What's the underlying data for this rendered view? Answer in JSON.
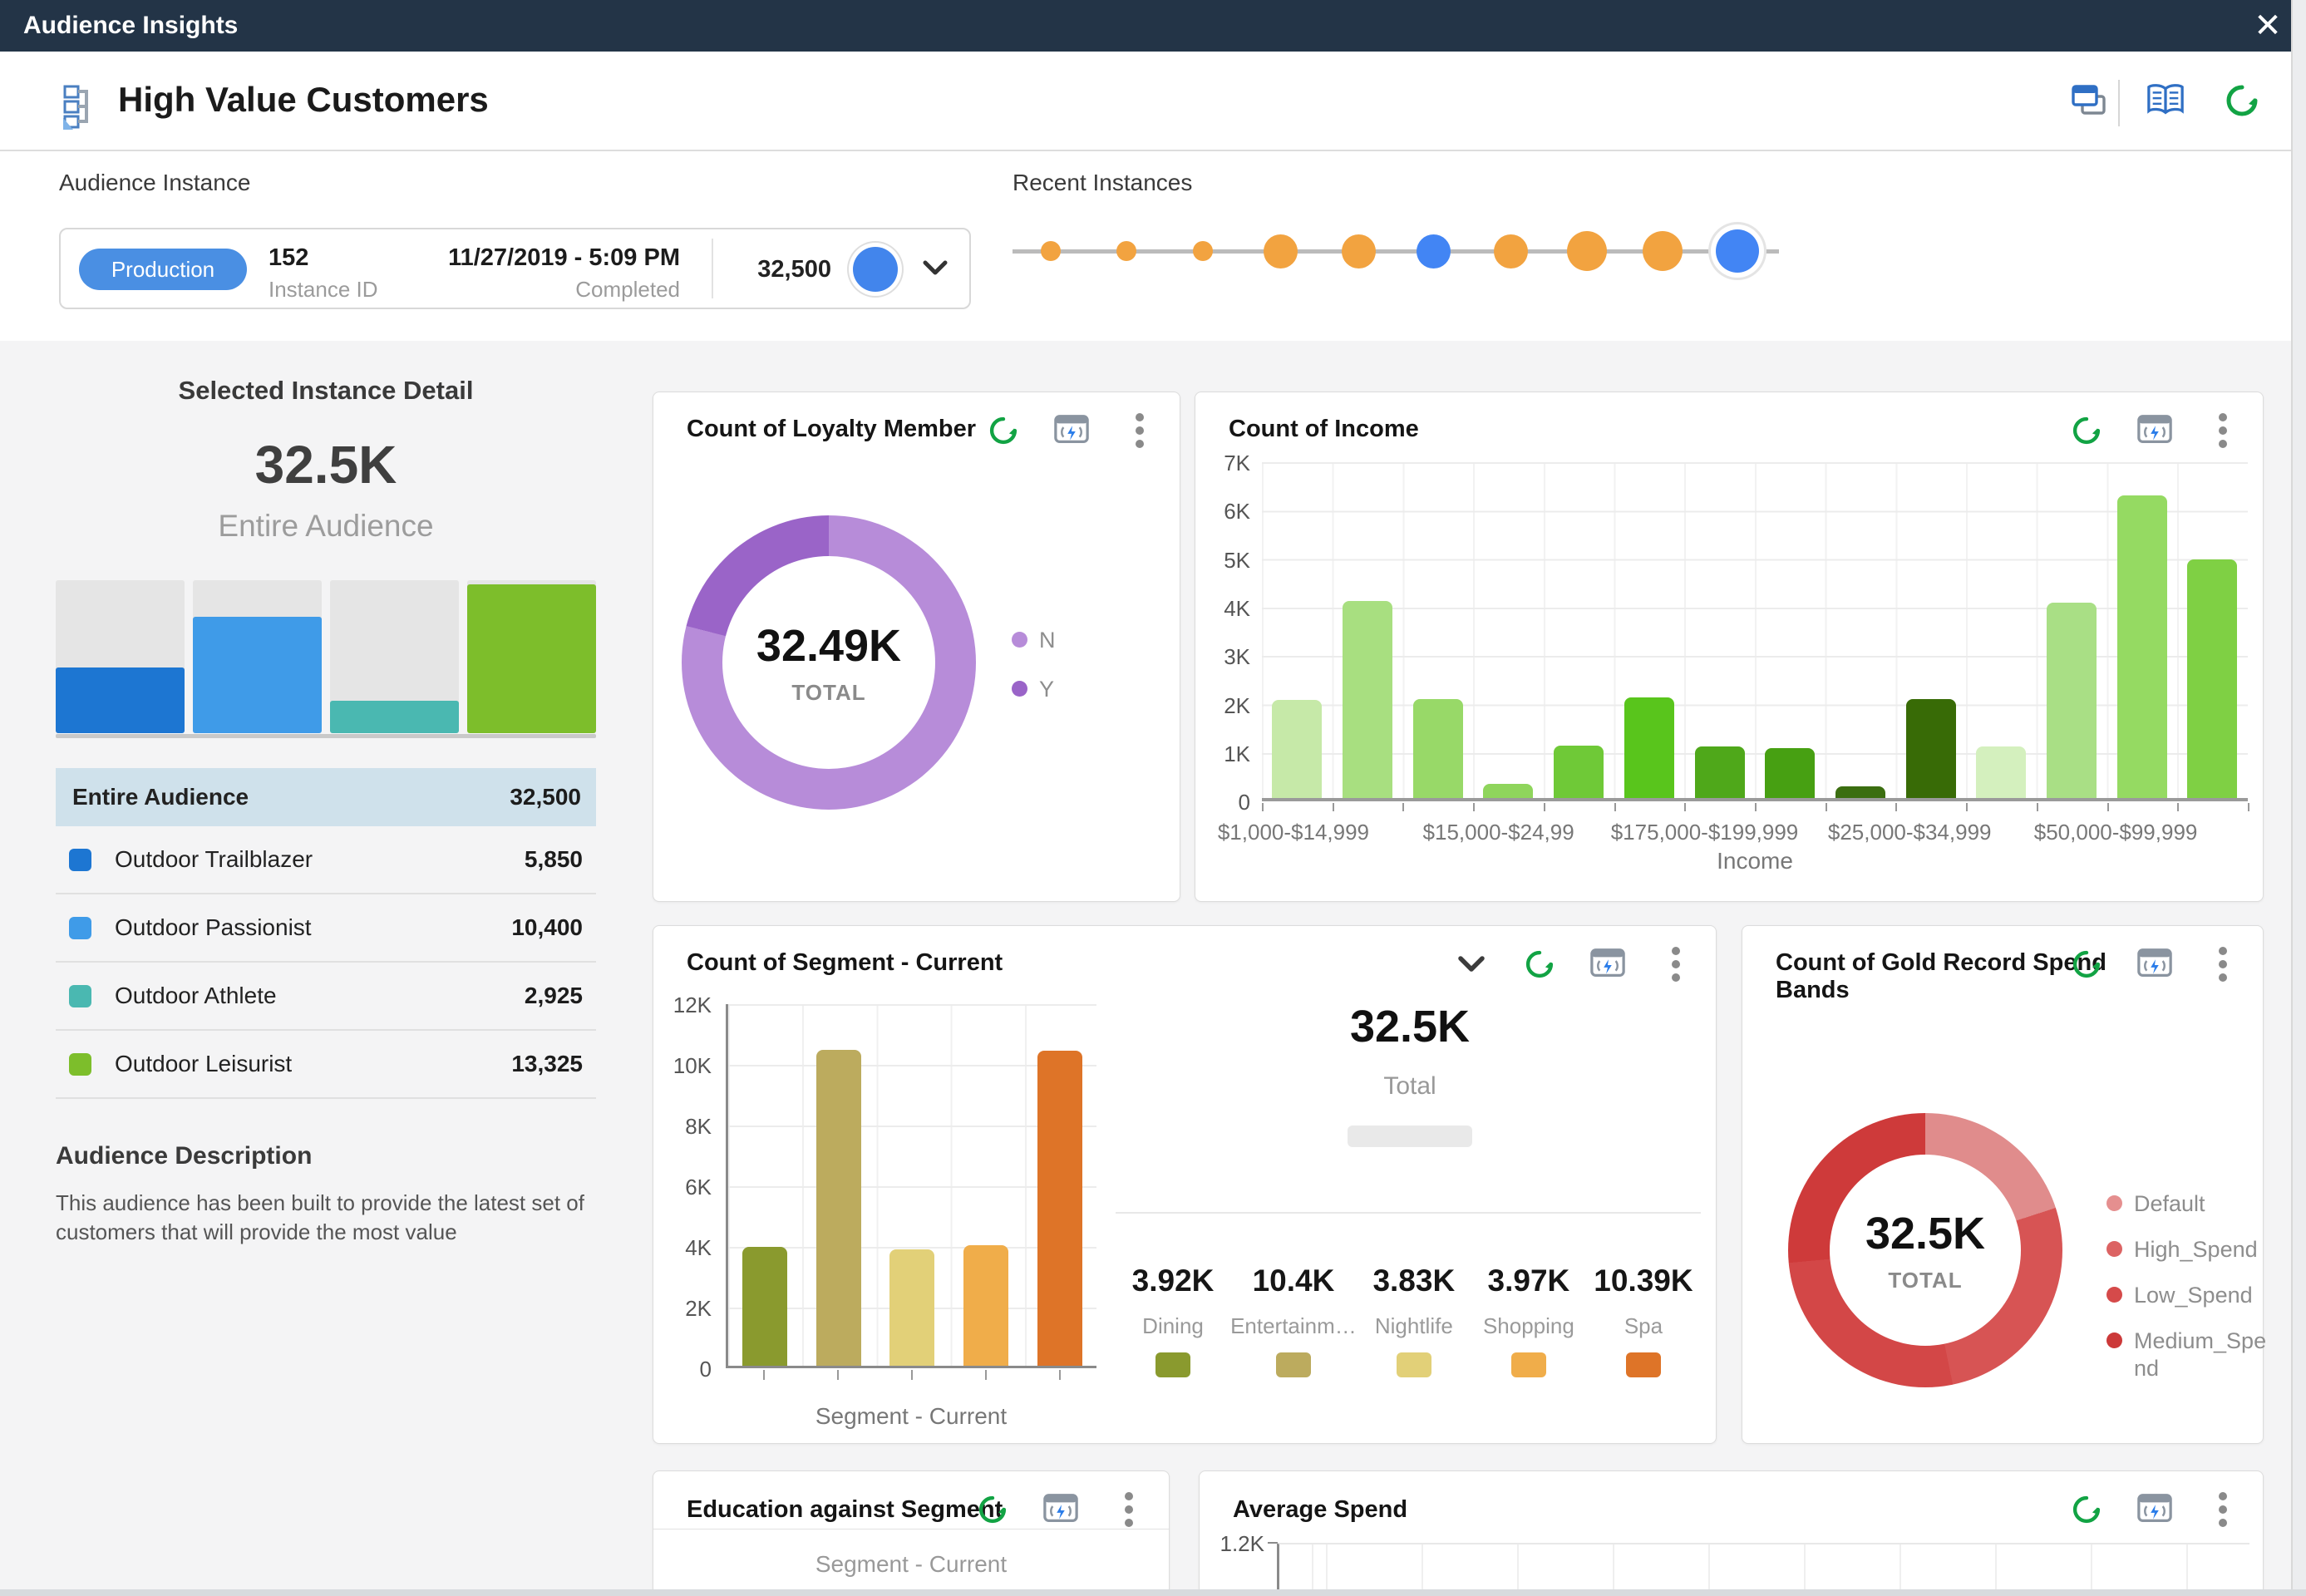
{
  "titlebar": {
    "title": "Audience Insights"
  },
  "header": {
    "title": "High Value Customers"
  },
  "instance_panel": {
    "audience_instance_label": "Audience Instance",
    "recent_instances_label": "Recent Instances",
    "card": {
      "badge": "Production",
      "instance_id_value": "152",
      "instance_id_label": "Instance ID",
      "completed_value": "11/27/2019 - 5:09 PM",
      "completed_label": "Completed",
      "count": "32,500"
    },
    "timeline_dots": [
      {
        "x": 1264,
        "size": 24,
        "color": "#F2A340",
        "selected": false
      },
      {
        "x": 1355,
        "size": 24,
        "color": "#F2A340",
        "selected": false
      },
      {
        "x": 1447,
        "size": 24,
        "color": "#F2A340",
        "selected": false
      },
      {
        "x": 1540,
        "size": 41,
        "color": "#F2A340",
        "selected": false
      },
      {
        "x": 1634,
        "size": 41,
        "color": "#F2A340",
        "selected": false
      },
      {
        "x": 1724,
        "size": 41,
        "color": "#4285F4",
        "selected": false
      },
      {
        "x": 1817,
        "size": 41,
        "color": "#F2A340",
        "selected": false
      },
      {
        "x": 1909,
        "size": 48,
        "color": "#F2A340",
        "selected": false
      },
      {
        "x": 2000,
        "size": 48,
        "color": "#F2A340",
        "selected": false
      },
      {
        "x": 2090,
        "size": 52,
        "color": "#4285F4",
        "selected": true
      }
    ]
  },
  "left_panel": {
    "title": "Selected Instance Detail",
    "total_value": "32.5K",
    "total_label": "Entire Audience",
    "rows": [
      {
        "label": "Entire Audience",
        "value": "32,500",
        "swatch": null,
        "highlight": true
      },
      {
        "label": "Outdoor Trailblazer",
        "value": "5,850",
        "swatch": "#1D76D2",
        "highlight": false
      },
      {
        "label": "Outdoor Passionist",
        "value": "10,400",
        "swatch": "#3F9BE8",
        "highlight": false
      },
      {
        "label": "Outdoor Athlete",
        "value": "2,925",
        "swatch": "#4AB8B1",
        "highlight": false
      },
      {
        "label": "Outdoor Leisurist",
        "value": "13,325",
        "swatch": "#7DBE2B",
        "highlight": false
      }
    ],
    "description_title": "Audience Description",
    "description_text": "This audience has been built to provide the latest set of customers that will provide the most value"
  },
  "cards": {
    "loyalty": {
      "title": "Count of Loyalty Member",
      "center_value": "32.49K",
      "center_label": "TOTAL",
      "legend": [
        {
          "label": "N",
          "color": "#B78CD9"
        },
        {
          "label": "Y",
          "color": "#9A64C8"
        }
      ]
    },
    "income": {
      "title": "Count of Income",
      "y_ticks": [
        "7K",
        "6K",
        "5K",
        "4K",
        "3K",
        "2K",
        "1K",
        "0"
      ],
      "x_labels": [
        "$1,000-$14,999",
        "$15,000-$24,99",
        "$175,000-$199,999",
        "$25,000-$34,999",
        "$50,000-$99,999"
      ],
      "x_title": "Income"
    },
    "segment": {
      "title": "Count of Segment - Current",
      "y_ticks": [
        "12K",
        "10K",
        "8K",
        "6K",
        "4K",
        "2K",
        "0"
      ],
      "x_title": "Segment - Current",
      "total_value": "32.5K",
      "total_label": "Total",
      "stats": [
        {
          "value": "3.92K",
          "label": "Dining",
          "color": "#8A9A2E"
        },
        {
          "value": "10.4K",
          "label": "Entertainm…",
          "color": "#BCAB5E"
        },
        {
          "value": "3.83K",
          "label": "Nightlife",
          "color": "#E2D078"
        },
        {
          "value": "3.97K",
          "label": "Shopping",
          "color": "#F0AD4A"
        },
        {
          "value": "10.39K",
          "label": "Spa",
          "color": "#DE7428"
        }
      ]
    },
    "gold": {
      "title": "Count of Gold Record Spend Bands",
      "center_value": "32.5K",
      "center_label": "TOTAL",
      "legend": [
        {
          "label": "Default",
          "color": "#E58F8F"
        },
        {
          "label": "High_Spend",
          "color": "#DC6363"
        },
        {
          "label": "Low_Spend",
          "color": "#D54A4A"
        },
        {
          "label": "Medium_Spend",
          "color": "#CC3939"
        }
      ]
    },
    "education": {
      "title": "Education against Segment",
      "axis_label": "Segment - Current"
    },
    "avg_spend": {
      "title": "Average Spend",
      "y_tick": "1.2K"
    }
  },
  "chart_data": [
    {
      "id": "instance-composition",
      "type": "bar",
      "title": "Selected Instance Detail",
      "categories": [
        "Outdoor Trailblazer",
        "Outdoor Passionist",
        "Outdoor Athlete",
        "Outdoor Leisurist"
      ],
      "values": [
        5850,
        10400,
        2925,
        13325
      ],
      "colors": [
        "#1D76D2",
        "#3F9BE8",
        "#4AB8B1",
        "#7DBE2B"
      ],
      "ylim": [
        0,
        13700
      ]
    },
    {
      "id": "loyalty-donut",
      "type": "pie",
      "title": "Count of Loyalty Member",
      "total": 32490,
      "categories": [
        "N",
        "Y"
      ],
      "values": [
        25670,
        6820
      ],
      "colors": [
        "#B78CD9",
        "#9A64C8"
      ],
      "legend_position": "right"
    },
    {
      "id": "income-bars",
      "type": "bar",
      "title": "Count of Income",
      "xlabel": "Income",
      "ylim": [
        0,
        7000
      ],
      "y_tick_labels": [
        "7K",
        "6K",
        "5K",
        "4K",
        "3K",
        "2K",
        "1K",
        "0"
      ],
      "x_tick_labels": [
        "$1,000-$14,999",
        "$15,000-$24,99",
        "$175,000-$199,999",
        "$25,000-$34,999",
        "$50,000-$99,999"
      ],
      "values": [
        2050,
        4100,
        2070,
        300,
        1100,
        2100,
        1070,
        1040,
        250,
        2070,
        1070,
        4070,
        6300,
        4970
      ],
      "colors": [
        "#C6E9A8",
        "#A8DF80",
        "#98D968",
        "#8FD55C",
        "#6FC937",
        "#59C51C",
        "#4FA81A",
        "#47A012",
        "#3B6E10",
        "#386B06",
        "#D4F0BE",
        "#A9DF85",
        "#95DA62",
        "#7FD044"
      ],
      "grid": true
    },
    {
      "id": "segment-bars",
      "type": "bar",
      "title": "Count of Segment - Current",
      "xlabel": "Segment - Current",
      "ylim": [
        0,
        12000
      ],
      "y_tick_labels": [
        "12K",
        "10K",
        "8K",
        "6K",
        "4K",
        "2K",
        "0"
      ],
      "categories": [
        "Dining",
        "Entertainment",
        "Nightlife",
        "Shopping",
        "Spa"
      ],
      "values": [
        3920,
        10400,
        3830,
        3970,
        10390
      ],
      "colors": [
        "#8A9A2E",
        "#BCAB5E",
        "#E2D078",
        "#F0AD4A",
        "#DE7428"
      ],
      "total": 32500,
      "grid": true
    },
    {
      "id": "gold-donut",
      "type": "pie",
      "title": "Count of Gold Record Spend Bands",
      "total": 32500,
      "categories": [
        "Default",
        "High_Spend",
        "Low_Spend",
        "Medium_Spend"
      ],
      "values": [
        6500,
        8700,
        8700,
        8600
      ],
      "colors": [
        "#E08C8C",
        "#D75454",
        "#D34747",
        "#CE3A3A"
      ],
      "legend_position": "right"
    },
    {
      "id": "average-spend",
      "type": "bar",
      "title": "Average Spend",
      "ylim": [
        0,
        1200
      ],
      "y_tick_labels": [
        "1.2K"
      ],
      "values": []
    }
  ]
}
